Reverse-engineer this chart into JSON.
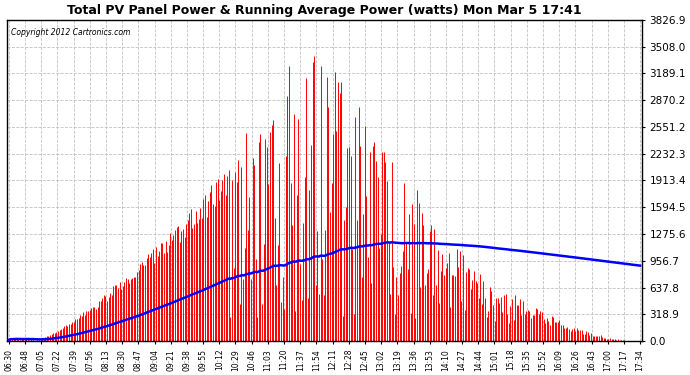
{
  "title": "Total PV Panel Power & Running Average Power (watts) Mon Mar 5 17:41",
  "copyright": "Copyright 2012 Cartronics.com",
  "bg_color": "#ffffff",
  "plot_bg_color": "#ffffff",
  "grid_color": "#bbbbbb",
  "bar_color": "#ff0000",
  "line_color": "#0000ff",
  "ymax": 3826.9,
  "yticks": [
    0.0,
    318.9,
    637.8,
    956.7,
    1275.6,
    1594.5,
    1913.4,
    2232.3,
    2551.2,
    2870.2,
    3189.1,
    3508.0,
    3826.9
  ],
  "xtick_labels": [
    "06:30",
    "06:48",
    "07:05",
    "07:22",
    "07:39",
    "07:56",
    "08:13",
    "08:30",
    "08:47",
    "09:04",
    "09:21",
    "09:38",
    "09:55",
    "10:12",
    "10:29",
    "10:46",
    "11:03",
    "11:20",
    "11:37",
    "11:54",
    "12:11",
    "12:28",
    "12:45",
    "13:02",
    "13:19",
    "13:36",
    "13:53",
    "14:10",
    "14:27",
    "14:44",
    "15:01",
    "15:18",
    "15:35",
    "15:52",
    "16:09",
    "16:26",
    "16:43",
    "17:00",
    "17:17",
    "17:34"
  ],
  "num_points": 400
}
